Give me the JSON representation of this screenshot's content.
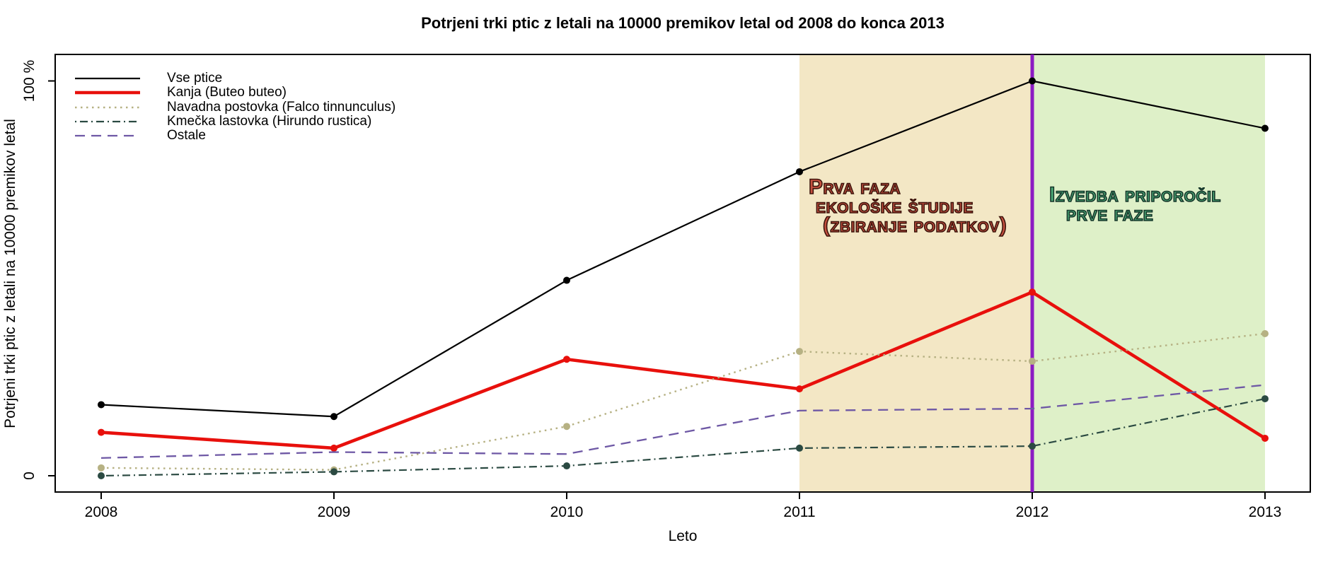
{
  "title": "Potrjeni trki ptic z letali na 10000 premikov letal od 2008 do konca 2013",
  "x_axis": {
    "label": "Leto",
    "ticks": [
      "2008",
      "2009",
      "2010",
      "2011",
      "2012",
      "2013"
    ]
  },
  "y_axis": {
    "label": "Potrjeni trki ptic z letali na 10000 premikov letal",
    "ticks": [
      {
        "value": 0,
        "label": "0"
      },
      {
        "value": 100,
        "label": "100 %"
      }
    ]
  },
  "chart_data": {
    "type": "line",
    "x": [
      2008,
      2009,
      2010,
      2011,
      2012,
      2013
    ],
    "series": [
      {
        "name": "Vse ptice",
        "values": [
          18,
          15,
          49.5,
          77,
          100,
          88
        ],
        "color": "#000000",
        "style": "solid",
        "width": 2.2,
        "markers": true
      },
      {
        "name": "Kanja (Buteo buteo)",
        "values": [
          11,
          7,
          29.5,
          22,
          46.5,
          9.5
        ],
        "color": "#e8100c",
        "style": "solid",
        "width": 4.6,
        "markers": true
      },
      {
        "name": "Navadna postovka (Falco tinnunculus)",
        "values": [
          2,
          1.5,
          12.5,
          31.5,
          29,
          36
        ],
        "color": "#b6b183",
        "style": "dotted",
        "width": 2.4,
        "markers": true
      },
      {
        "name": "Kmečka lastovka (Hirundo rustica)",
        "values": [
          0,
          1,
          2.5,
          7,
          7.5,
          19.5
        ],
        "color": "#2b4a42",
        "style": "dashdot",
        "width": 2.2,
        "markers": true
      },
      {
        "name": "Ostale",
        "values": [
          4.5,
          6,
          5.5,
          16.5,
          17,
          23
        ],
        "color": "#6e58a5",
        "style": "dashed",
        "width": 2.3,
        "markers": false
      }
    ],
    "ylim": [
      0,
      100
    ],
    "grid": false,
    "legend_position": "top-left",
    "regions": [
      {
        "from": 2011,
        "to": 2012,
        "fill": "#f3e7c5",
        "lines": [
          "Prva faza",
          "ekološke študije",
          "(zbiranje podatkov)"
        ],
        "text_color": "#c5503f",
        "outline_color": "#3d140c"
      },
      {
        "from": 2012,
        "to": 2013,
        "fill": "#def0c8",
        "lines": [
          "Izvedba priporočil",
          "prve faze"
        ],
        "text_color": "#4cab77",
        "outline_color": "#15352a"
      }
    ],
    "vline": {
      "x": 2012,
      "color": "#8b1cc3",
      "width": 5
    }
  }
}
